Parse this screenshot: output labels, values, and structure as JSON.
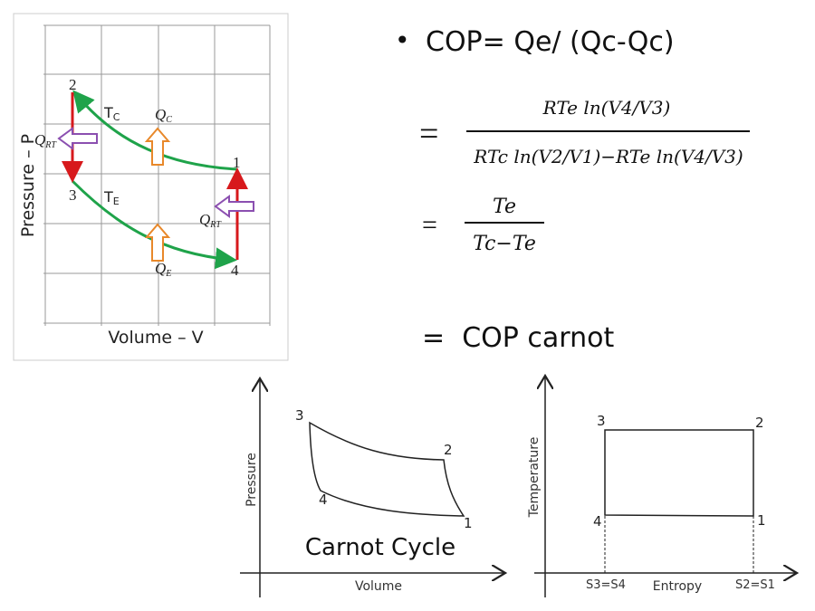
{
  "pv_grid_diagram": {
    "y_axis_label": "Pressure – P",
    "x_axis_label": "Volume – V",
    "points": [
      "1",
      "2",
      "3",
      "4"
    ],
    "labels": {
      "tc": "T",
      "tc_sub": "C",
      "te": "T",
      "te_sub": "E",
      "qc": "Q",
      "qc_sub": "C",
      "qe": "Q",
      "qe_sub": "E",
      "qrt": "Q",
      "qrt_sub": "RT"
    },
    "colors": {
      "isotherm": "#1fa34a",
      "isochore": "#d7191c",
      "heat_in": "#e8882a",
      "regen": "#8b4fb0"
    }
  },
  "formula": {
    "bullet": "•",
    "line1": "COP= Qe/ (Qc-Qc)",
    "eq": "=",
    "num": "RTe ln(V4/V3)",
    "den": "RTc ln(V2/V1)−RTe ln(V4/V3)",
    "num2": "Te",
    "den2": "Tc−Te",
    "last": "=  COP carnot"
  },
  "carnot_pv": {
    "y_axis_label": "Pressure",
    "x_axis_label": "Volume",
    "title": "Carnot Cycle",
    "points": [
      "1",
      "2",
      "3",
      "4"
    ]
  },
  "carnot_ts": {
    "y_axis_label": "Temperature",
    "x_axis_label": "Entropy",
    "tick_left": "S3=S4",
    "tick_right": "S2=S1",
    "points": [
      "1",
      "2",
      "3",
      "4"
    ]
  }
}
